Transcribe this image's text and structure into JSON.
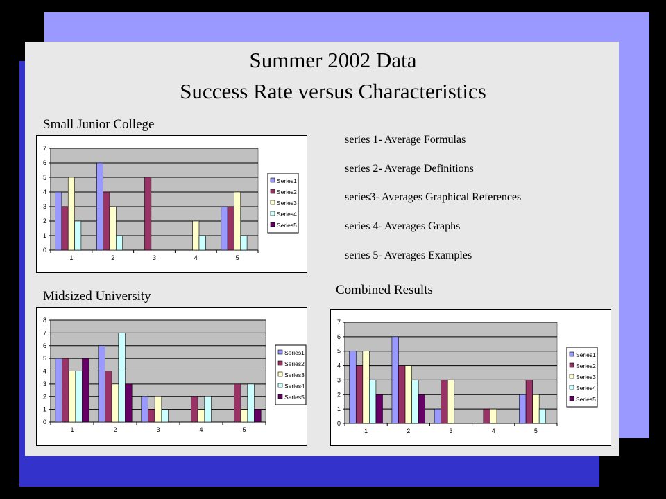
{
  "slide": {
    "title_line1": "Summer 2002 Data",
    "title_line2": "Success Rate versus Characteristics",
    "sections": {
      "small_junior_college": "Small Junior College",
      "midsized_university": "Midsized University",
      "combined_results": "Combined Results"
    },
    "series_descriptions": [
      "series 1- Average Formulas",
      "series 2- Average Definitions",
      "series3- Averages Graphical References",
      "series 4- Averages Graphs",
      "series 5- Averages Examples"
    ]
  },
  "colors": {
    "background": "#000000",
    "deco_dark_blue": "#3333cc",
    "deco_light_blue": "#9999ff",
    "slide_panel": "#e8e8e8",
    "plot_area": "#c0c0c0",
    "series": [
      "#9999ff",
      "#993366",
      "#ffffcc",
      "#ccffff",
      "#660066"
    ]
  },
  "chart_data": [
    {
      "type": "bar",
      "categories": [
        "1",
        "2",
        "3",
        "4",
        "5"
      ],
      "ylim": [
        0,
        7
      ],
      "yticks": [
        0,
        1,
        2,
        3,
        4,
        5,
        6,
        7
      ],
      "grid": true,
      "legend": "right",
      "series": [
        {
          "name": "Series1",
          "values": [
            4,
            6,
            0,
            0,
            3
          ]
        },
        {
          "name": "Series2",
          "values": [
            3,
            4,
            5,
            0,
            3
          ]
        },
        {
          "name": "Series3",
          "values": [
            5,
            3,
            0,
            2,
            4
          ]
        },
        {
          "name": "Series4",
          "values": [
            2,
            1,
            0,
            1,
            1
          ]
        },
        {
          "name": "Series5",
          "values": [
            0,
            0,
            0,
            0,
            0
          ]
        }
      ]
    },
    {
      "type": "bar",
      "categories": [
        "1",
        "2",
        "3",
        "4",
        "5"
      ],
      "ylim": [
        0,
        8
      ],
      "yticks": [
        0,
        1,
        2,
        3,
        4,
        5,
        6,
        7,
        8
      ],
      "grid": true,
      "legend": "right",
      "series": [
        {
          "name": "Series1",
          "values": [
            5,
            6,
            2,
            0,
            0
          ]
        },
        {
          "name": "Series2",
          "values": [
            5,
            4,
            1,
            2,
            3
          ]
        },
        {
          "name": "Series3",
          "values": [
            4,
            3,
            2,
            1,
            1
          ]
        },
        {
          "name": "Series4",
          "values": [
            4,
            7,
            1,
            2,
            3
          ]
        },
        {
          "name": "Series5",
          "values": [
            5,
            3,
            0,
            0,
            1
          ]
        }
      ]
    },
    {
      "type": "bar",
      "categories": [
        "1",
        "2",
        "3",
        "4",
        "5"
      ],
      "ylim": [
        0,
        7
      ],
      "yticks": [
        0,
        1,
        2,
        3,
        4,
        5,
        6,
        7
      ],
      "grid": true,
      "legend": "right",
      "series": [
        {
          "name": "Series1",
          "values": [
            5,
            6,
            1,
            0,
            2
          ]
        },
        {
          "name": "Series2",
          "values": [
            4,
            4,
            3,
            1,
            3
          ]
        },
        {
          "name": "Series3",
          "values": [
            5,
            4,
            3,
            1,
            2
          ]
        },
        {
          "name": "Series4",
          "values": [
            3,
            3,
            0,
            0,
            1
          ]
        },
        {
          "name": "Series5",
          "values": [
            2,
            2,
            0,
            0,
            0
          ]
        }
      ]
    }
  ]
}
